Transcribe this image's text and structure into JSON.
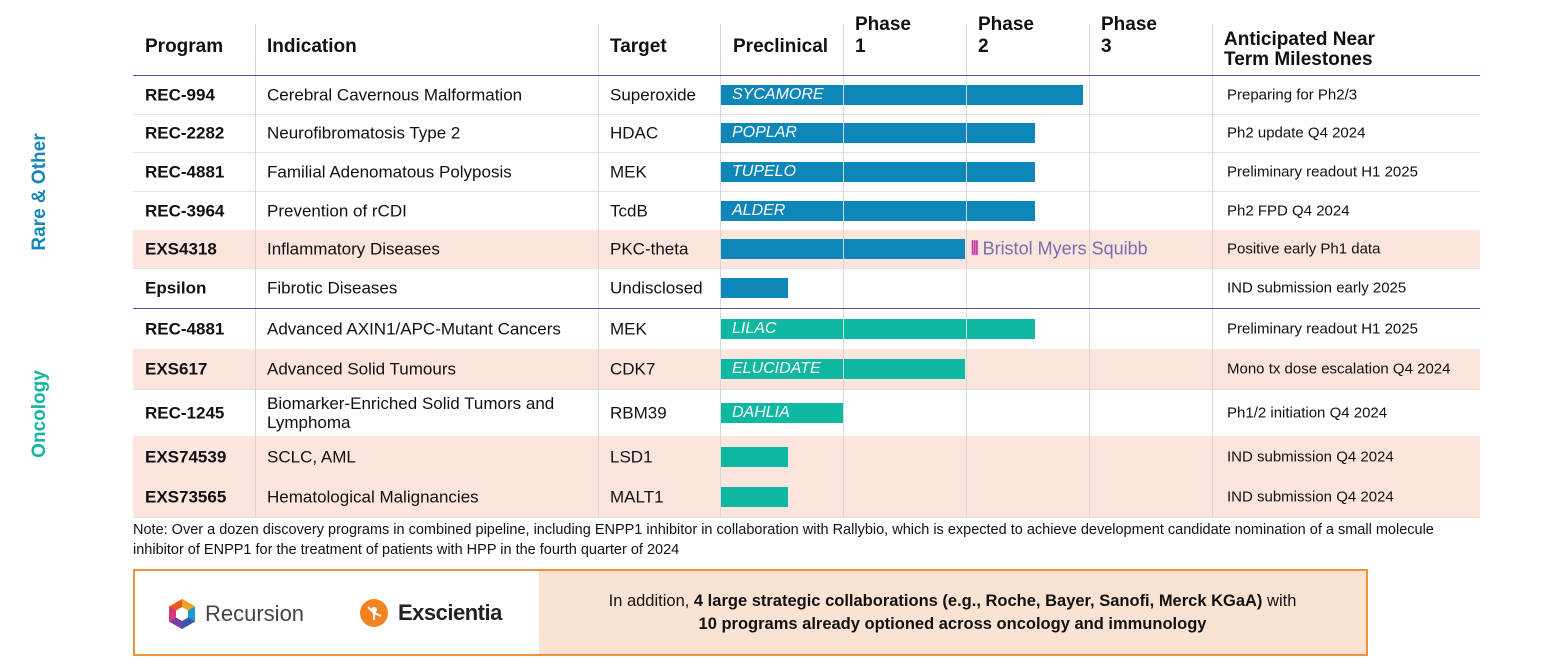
{
  "colors": {
    "rare": "#1388b8",
    "oncology": "#12b5a0",
    "bar_blue": "#0e86b8",
    "bar_teal": "#0fb8a2",
    "row_shade": "#fbe5dc",
    "box_border": "#f0943a"
  },
  "group_labels": {
    "rare": "Rare & Other",
    "oncology": "Oncology"
  },
  "headers": {
    "program": "Program",
    "indication": "Indication",
    "target": "Target",
    "preclinical": "Preclinical",
    "phase1": "Phase 1",
    "phase2": "Phase 2",
    "phase3": "Phase 3",
    "milestones_line1": "Anticipated Near",
    "milestones_line2": "Term Milestones"
  },
  "rows": [
    {
      "program": "REC-994",
      "indication": "Cerebral Cavernous Malformation",
      "target": "Superoxide",
      "bar_label": "SYCAMORE",
      "stage": "phase 2 completed",
      "milestone": "Preparing for Ph2/3"
    },
    {
      "program": "REC-2282",
      "indication": "Neurofibromatosis Type 2",
      "target": "HDAC",
      "bar_label": "POPLAR",
      "stage": "phase 2",
      "milestone": "Ph2 update Q4 2024"
    },
    {
      "program": "REC-4881",
      "indication": "Familial Adenomatous Polyposis",
      "target": "MEK",
      "bar_label": "TUPELO",
      "stage": "phase 2",
      "milestone": "Preliminary readout H1 2025"
    },
    {
      "program": "REC-3964",
      "indication": "Prevention of rCDI",
      "target": "TcdB",
      "bar_label": "ALDER",
      "stage": "phase 2",
      "milestone": "Ph2 FPD Q4 2024"
    },
    {
      "program": "EXS4318",
      "indication": "Inflammatory Diseases",
      "target": "PKC-theta",
      "bar_label": "",
      "stage": "phase 1",
      "partner": "Bristol Myers Squibb",
      "milestone": "Positive early Ph1 data"
    },
    {
      "program": "Epsilon",
      "indication": "Fibrotic Diseases",
      "target": "Undisclosed",
      "bar_label": "",
      "stage": "preclinical",
      "milestone": "IND submission early 2025"
    },
    {
      "program": "REC-4881",
      "indication": "Advanced AXIN1/APC-Mutant Cancers",
      "target": "MEK",
      "bar_label": "LILAC",
      "stage": "phase 2",
      "milestone": "Preliminary readout H1 2025"
    },
    {
      "program": "EXS617",
      "indication": "Advanced Solid Tumours",
      "target": "CDK7",
      "bar_label": "ELUCIDATE",
      "stage": "phase 1",
      "milestone": "Mono tx dose escalation Q4 2024"
    },
    {
      "program": "REC-1245",
      "indication": "Biomarker-Enriched Solid Tumors and Lymphoma",
      "target": "RBM39",
      "bar_label": "DAHLIA",
      "stage": "preclinical completed",
      "milestone": "Ph1/2 initiation Q4 2024"
    },
    {
      "program": "EXS74539",
      "indication": "SCLC, AML",
      "target": "LSD1",
      "bar_label": "",
      "stage": "preclinical",
      "milestone": "IND submission Q4 2024"
    },
    {
      "program": "EXS73565",
      "indication": "Hematological Malignancies",
      "target": "MALT1",
      "bar_label": "",
      "stage": "preclinical",
      "milestone": "IND submission Q4 2024"
    }
  ],
  "note": "Note: Over a dozen discovery programs in combined pipeline, including ENPP1 inhibitor in collaboration with Rallybio, which is expected to achieve development candidate nomination of a small molecule inhibitor of ENPP1 for the treatment of patients with HPP in the fourth quarter of 2024",
  "footer": {
    "logo_recursion": "Recursion",
    "logo_exscientia": "Exscientia",
    "text_prefix": "In addition, ",
    "text_bold_1": "4 large strategic collaborations (e.g., Roche, Bayer, Sanofi, Merck KGaA)",
    "text_mid": " with",
    "text_bold_2": "10 programs already optioned across oncology and immunology"
  }
}
